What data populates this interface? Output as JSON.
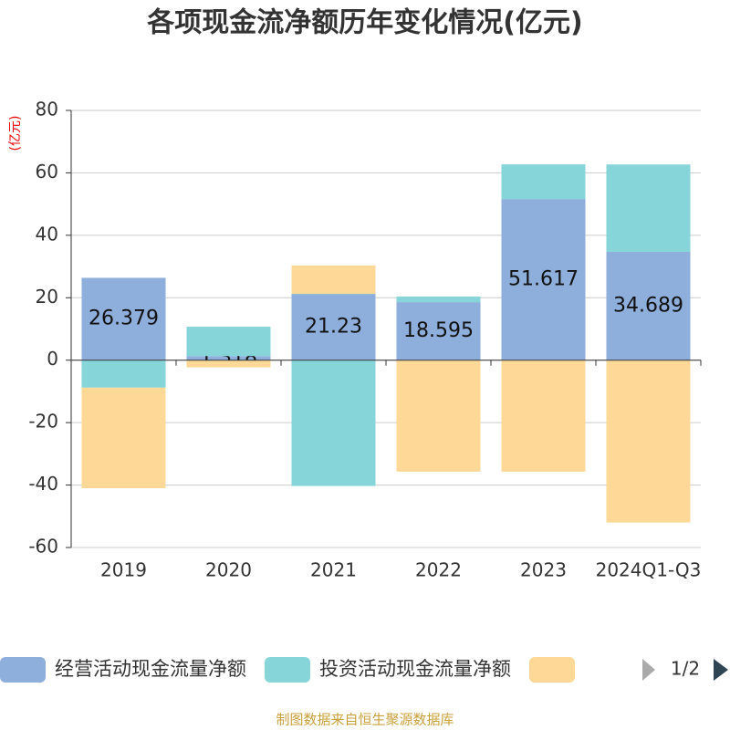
{
  "chart_data": {
    "type": "stacked_bar",
    "title": "各项现金流净额历年变化情况(亿元)",
    "y_label": "(亿元)",
    "source": "制图数据来自恒生聚源数据库",
    "legend_page": "1/2",
    "categories": [
      "2019",
      "2020",
      "2021",
      "2022",
      "2023",
      "2024Q1-Q3"
    ],
    "series": [
      {
        "name": "经营活动现金流量净额",
        "color": "#8eaedb",
        "values": [
          26.379,
          1.318,
          21.23,
          18.595,
          51.617,
          34.689
        ],
        "show_labels": true
      },
      {
        "name": "投资活动现金流量净额",
        "color": "#86d5d8",
        "values": [
          -8.8,
          9.4,
          -40.3,
          1.8,
          11.1,
          28.0
        ]
      },
      {
        "color": "#fdd897",
        "values": [
          -32.2,
          -2.3,
          9.1,
          -35.7,
          -35.7,
          -52.0
        ]
      }
    ],
    "ylim": [
      -60,
      80
    ],
    "yticks": [
      -60,
      -40,
      -20,
      0,
      20,
      40,
      60,
      80
    ],
    "grid": true
  }
}
